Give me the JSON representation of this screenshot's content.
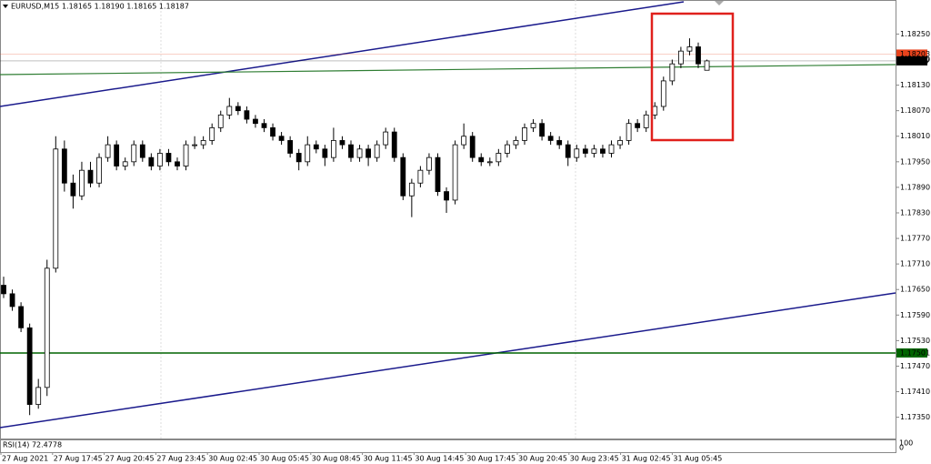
{
  "chart_data": {
    "type": "candlestick",
    "header": {
      "symbol": "EURUSD,M15",
      "ohlc": "1.18165 1.18190 1.18165 1.18187"
    },
    "open": [
      1.1766,
      1.1764,
      1.1761,
      1.1756,
      1.1738,
      1.1742,
      1.177,
      1.1798,
      1.179,
      1.1787,
      1.1793,
      1.179,
      1.1796,
      1.1799,
      1.1794,
      1.1795,
      1.1799,
      1.1796,
      1.1794,
      1.1797,
      1.1795,
      1.1794,
      1.1799,
      1.1799,
      1.18,
      1.1803,
      1.1806,
      1.1808,
      1.1807,
      1.1805,
      1.1804,
      1.1803,
      1.1801,
      1.18,
      1.1797,
      1.1795,
      1.1799,
      1.1798,
      1.1796,
      1.18,
      1.1799,
      1.1796,
      1.1798,
      1.1796,
      1.1799,
      1.1802,
      1.1796,
      1.1787,
      1.179,
      1.1793,
      1.1796,
      1.1788,
      1.1786,
      1.1799,
      1.1801,
      1.1796,
      1.1795,
      1.1795,
      1.1797,
      1.1799,
      1.18,
      1.1803,
      1.1804,
      1.1801,
      1.18,
      1.1799,
      1.1796,
      1.1798,
      1.1797,
      1.1798,
      1.1797,
      1.1799,
      1.18,
      1.1804,
      1.1803,
      1.1806,
      1.1808,
      1.1814,
      1.1818,
      1.1821,
      1.1822,
      1.18165
    ],
    "high": [
      1.1768,
      1.1765,
      1.1762,
      1.1757,
      1.1744,
      1.1772,
      1.1801,
      1.18,
      1.1792,
      1.1795,
      1.1795,
      1.1797,
      1.1801,
      1.18,
      1.1796,
      1.18,
      1.18,
      1.1797,
      1.1798,
      1.1798,
      1.1796,
      1.18,
      1.1801,
      1.1801,
      1.1804,
      1.1807,
      1.181,
      1.1809,
      1.1808,
      1.1806,
      1.1805,
      1.1804,
      1.1802,
      1.1801,
      1.1798,
      1.1801,
      1.18,
      1.1799,
      1.1803,
      1.1801,
      1.18,
      1.1799,
      1.1799,
      1.18,
      1.1803,
      1.1803,
      1.1797,
      1.1791,
      1.1794,
      1.1797,
      1.1797,
      1.1789,
      1.18,
      1.1804,
      1.1802,
      1.1797,
      1.1796,
      1.1798,
      1.18,
      1.1801,
      1.1804,
      1.1805,
      1.1805,
      1.1802,
      1.1801,
      1.18,
      1.1799,
      1.1799,
      1.1799,
      1.1799,
      1.18,
      1.1801,
      1.1805,
      1.1805,
      1.1807,
      1.1809,
      1.1815,
      1.1819,
      1.1822,
      1.1824,
      1.1823,
      1.1819
    ],
    "low": [
      1.1763,
      1.176,
      1.1755,
      1.17355,
      1.1737,
      1.174,
      1.1769,
      1.1788,
      1.1784,
      1.1786,
      1.1789,
      1.1789,
      1.1795,
      1.1793,
      1.1793,
      1.1794,
      1.1795,
      1.1793,
      1.1793,
      1.1794,
      1.1793,
      1.1793,
      1.1798,
      1.1798,
      1.1799,
      1.1802,
      1.1805,
      1.1806,
      1.1804,
      1.1803,
      1.1802,
      1.18,
      1.1799,
      1.1796,
      1.1793,
      1.1794,
      1.1797,
      1.1794,
      1.1795,
      1.1798,
      1.1795,
      1.1795,
      1.1794,
      1.1795,
      1.1798,
      1.1795,
      1.1786,
      1.1782,
      1.1789,
      1.1792,
      1.1787,
      1.1783,
      1.1785,
      1.1798,
      1.1795,
      1.1794,
      1.1794,
      1.1794,
      1.1796,
      1.1798,
      1.1799,
      1.1802,
      1.18,
      1.1799,
      1.1798,
      1.1794,
      1.1795,
      1.1796,
      1.1796,
      1.1796,
      1.1796,
      1.1798,
      1.1799,
      1.1802,
      1.1802,
      1.1805,
      1.1807,
      1.1813,
      1.1817,
      1.182,
      1.1817,
      1.18165
    ],
    "close": [
      1.1764,
      1.1761,
      1.1756,
      1.1738,
      1.1742,
      1.177,
      1.1798,
      1.179,
      1.1787,
      1.1793,
      1.179,
      1.1796,
      1.1799,
      1.1794,
      1.1795,
      1.1799,
      1.1796,
      1.1794,
      1.1797,
      1.1795,
      1.1794,
      1.1799,
      1.1799,
      1.18,
      1.1803,
      1.1806,
      1.1808,
      1.1807,
      1.1805,
      1.1804,
      1.1803,
      1.1801,
      1.18,
      1.1797,
      1.1795,
      1.1799,
      1.1798,
      1.1796,
      1.18,
      1.1799,
      1.1796,
      1.1798,
      1.1796,
      1.1799,
      1.1802,
      1.1796,
      1.1787,
      1.179,
      1.1793,
      1.1796,
      1.1788,
      1.1786,
      1.1799,
      1.1801,
      1.1796,
      1.1795,
      1.1795,
      1.1797,
      1.1799,
      1.18,
      1.1803,
      1.1804,
      1.1801,
      1.18,
      1.1799,
      1.1796,
      1.1798,
      1.1797,
      1.1798,
      1.1797,
      1.1799,
      1.18,
      1.1804,
      1.1803,
      1.1806,
      1.1808,
      1.1814,
      1.1818,
      1.1821,
      1.1822,
      1.1818,
      1.18187
    ],
    "x_labels": [
      "27 Aug 2021",
      "27 Aug 17:45",
      "27 Aug 20:45",
      "27 Aug 23:45",
      "30 Aug 02:45",
      "30 Aug 05:45",
      "30 Aug 08:45",
      "30 Aug 11:45",
      "30 Aug 14:45",
      "30 Aug 17:45",
      "30 Aug 20:45",
      "30 Aug 23:45",
      "31 Aug 02:45",
      "31 Aug 05:45"
    ],
    "ylim": [
      1.173,
      1.1833
    ],
    "yticks": [
      {
        "value": 1.1825,
        "label": "1.18250"
      },
      {
        "value": 1.1819,
        "label": "1.18190"
      },
      {
        "value": 1.1813,
        "label": "1.18130"
      },
      {
        "value": 1.1807,
        "label": "1.18070"
      },
      {
        "value": 1.1801,
        "label": "1.18010"
      },
      {
        "value": 1.1795,
        "label": "1.17950"
      },
      {
        "value": 1.1789,
        "label": "1.17890"
      },
      {
        "value": 1.1783,
        "label": "1.17830"
      },
      {
        "value": 1.1777,
        "label": "1.17770"
      },
      {
        "value": 1.1771,
        "label": "1.17710"
      },
      {
        "value": 1.1765,
        "label": "1.17650"
      },
      {
        "value": 1.1759,
        "label": "1.17590"
      },
      {
        "value": 1.1753,
        "label": "1.17530"
      },
      {
        "value": 1.1747,
        "label": "1.17470"
      },
      {
        "value": 1.1741,
        "label": "1.17410"
      },
      {
        "value": 1.1735,
        "label": "1.17350"
      }
    ],
    "price_labels": [
      {
        "value": 1.18203,
        "color": "#e8431c"
      },
      {
        "value": 1.18187,
        "color": "#000000"
      },
      {
        "value": 1.17501,
        "color": "#006400"
      }
    ],
    "rsi": {
      "label": "RSI(14) 72.4778",
      "yticks": [
        100,
        0
      ]
    }
  }
}
